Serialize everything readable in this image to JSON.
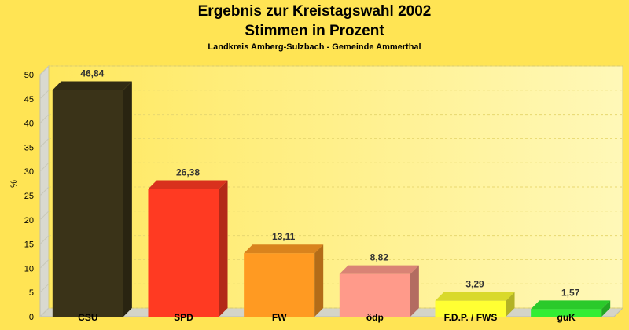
{
  "chart_data": {
    "type": "bar",
    "title": "Ergebnis zur Kreistagswahl 2002",
    "subtitle": "Stimmen in Prozent",
    "caption": "Landkreis Amberg-Sulzbach - Gemeinde Ammerthal",
    "ylabel": "%",
    "xlabel": "",
    "ylim": [
      0,
      50
    ],
    "yticks": [
      0,
      5,
      10,
      15,
      20,
      25,
      30,
      35,
      40,
      45,
      50
    ],
    "grid": true,
    "categories": [
      "CSU",
      "SPD",
      "FW",
      "ödp",
      "F.D.P. / FWS",
      "guK"
    ],
    "values": [
      46.84,
      26.38,
      13.11,
      8.82,
      3.29,
      1.57
    ],
    "value_labels": [
      "46,84",
      "26,38",
      "13,11",
      "8,82",
      "3,29",
      "1,57"
    ],
    "colors": [
      "#3a3318",
      "#ff3a22",
      "#ff9a22",
      "#ff9a8a",
      "#ffff33",
      "#33ee33"
    ]
  }
}
